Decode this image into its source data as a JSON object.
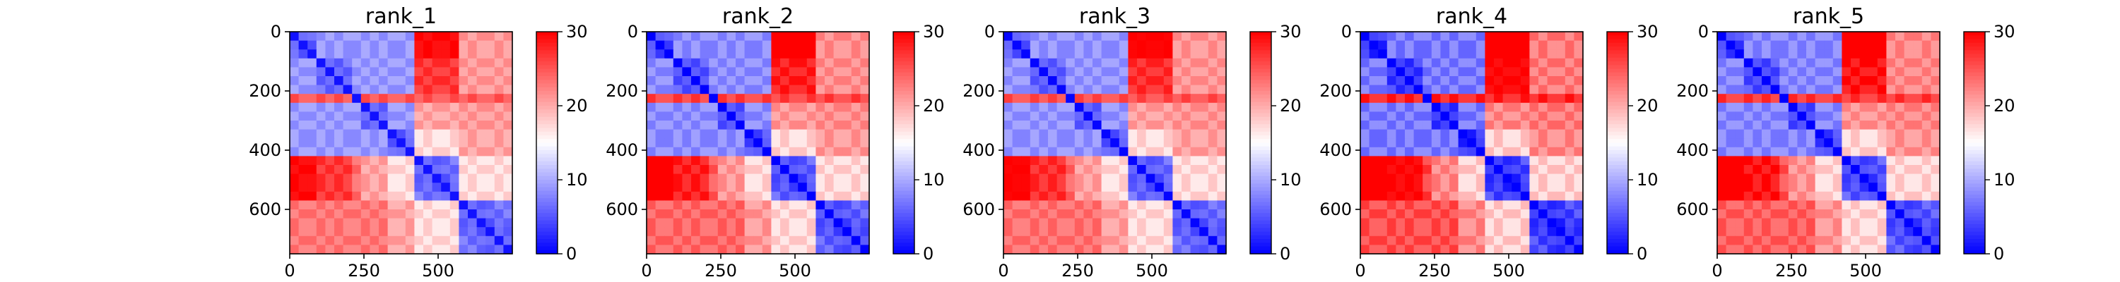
{
  "chart_data": {
    "type": "heatmap",
    "colormap": {
      "low": "#0000ff",
      "mid": "#ffffff",
      "high": "#ff0000"
    },
    "value_range": [
      0,
      30
    ],
    "colorbar_ticks": [
      0,
      10,
      20,
      30
    ],
    "x_ticks": [
      0,
      250,
      500
    ],
    "y_ticks": [
      0,
      200,
      400,
      600
    ],
    "axis_range": [
      0,
      750
    ],
    "grid": false,
    "panels": [
      {
        "title": "rank_1",
        "contrast": 1.0
      },
      {
        "title": "rank_2",
        "contrast": 1.12
      },
      {
        "title": "rank_3",
        "contrast": 1.05
      },
      {
        "title": "rank_4",
        "contrast": 1.3
      },
      {
        "title": "rank_5",
        "contrast": 1.18
      }
    ]
  }
}
